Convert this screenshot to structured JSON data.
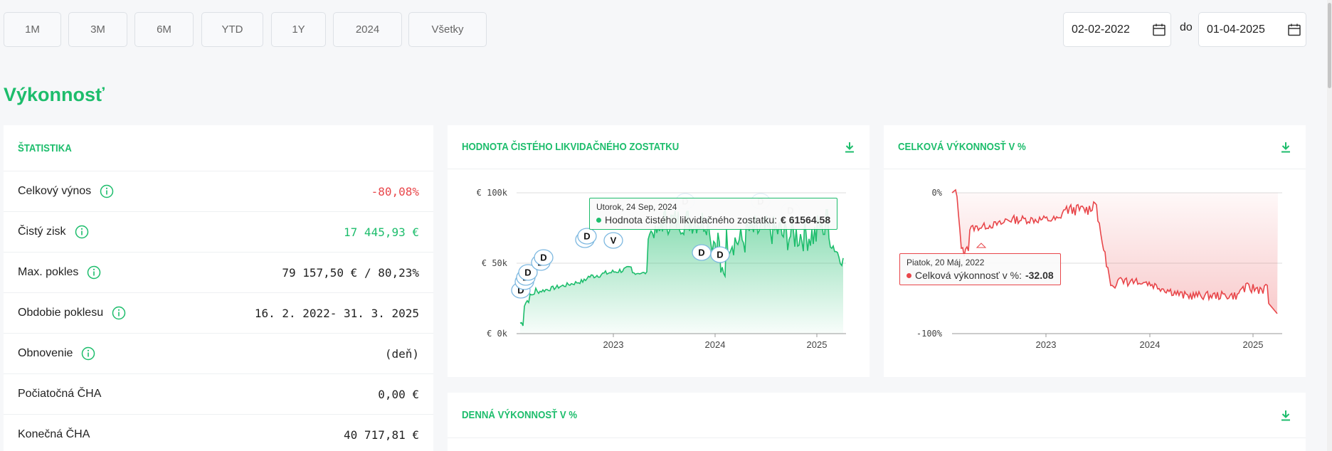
{
  "range_buttons": [
    "1M",
    "3M",
    "6M",
    "YTD",
    "1Y",
    "2024",
    "Všetky"
  ],
  "date_from": "02-02-2022",
  "date_sep": "do",
  "date_to": "01-04-2025",
  "section_title": "Výkonnosť",
  "stats": {
    "title": "ŠTATISTIKA",
    "rows": [
      {
        "label": "Celkový výnos",
        "value": "-80,08%",
        "tone": "neg"
      },
      {
        "label": "Čistý zisk",
        "value": "17 445,93 €",
        "tone": "pos"
      },
      {
        "label": "Max. pokles",
        "value": "79 157,50 € / 80,23%",
        "tone": ""
      },
      {
        "label": "Obdobie poklesu",
        "value": "16. 2. 2022- 31. 3. 2025",
        "tone": ""
      },
      {
        "label": "Obnovenie",
        "value": "(deň)",
        "tone": ""
      },
      {
        "label": "Počiatočná ČHA",
        "value": "0,00 €",
        "tone": ""
      },
      {
        "label": "Konečná ČHA",
        "value": "40 717,81 €",
        "tone": ""
      }
    ]
  },
  "nav_chart": {
    "title": "HODNOTA ČISTÉHO LIKVIDAČNÉHO ZOSTATKU",
    "tooltip_date": "Utorok, 24 Sep, 2024",
    "tooltip_series": "Hodnota čistého likvidačného zostatku:",
    "tooltip_value": "€ 61564.58",
    "y_ticks": [
      "€ 100k",
      "€ 50k",
      "€ 0k"
    ],
    "x_ticks": [
      "2023",
      "2024",
      "2025"
    ],
    "markers": [
      "D",
      "D",
      "D",
      "D",
      "D",
      "D",
      "V",
      "D",
      "D",
      "D",
      "D",
      "D"
    ],
    "color": "#1dbd6c"
  },
  "perf_chart": {
    "title": "CELKOVÁ VÝKONNOSŤ V %",
    "tooltip_date": "Piatok, 20 Máj, 2022",
    "tooltip_series": "Celková výkonnosť v %:",
    "tooltip_value": "-32.08",
    "y_ticks": [
      "0%",
      "-100%"
    ],
    "x_ticks": [
      "2023",
      "2024",
      "2025"
    ],
    "color": "#e8464a"
  },
  "daily_chart": {
    "title": "DENNÁ VÝKONNOSŤ V %"
  }
}
